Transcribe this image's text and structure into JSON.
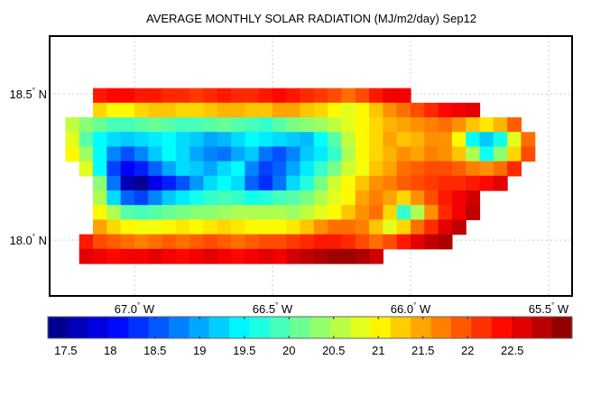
{
  "chart_data": {
    "type": "heatmap",
    "title": "AVERAGE MONTHLY SOLAR RADIATION (MJ/m2/day) Sep12",
    "colormap": "jet",
    "clim": [
      17.3,
      23.17
    ],
    "xlim": [
      -67.307,
      -65.415
    ],
    "ylim": [
      17.809,
      18.698
    ],
    "grid": true,
    "x_ticks": [
      {
        "value": -67.0,
        "label": "67.0",
        "suffix": "W"
      },
      {
        "value": -66.5,
        "label": "66.5",
        "suffix": "W"
      },
      {
        "value": -66.0,
        "label": "66.0",
        "suffix": "W"
      },
      {
        "value": -65.5,
        "label": "65.5",
        "suffix": "W"
      }
    ],
    "y_ticks": [
      {
        "value": 18.5,
        "label": "18.5",
        "suffix": "N"
      },
      {
        "value": 18.0,
        "label": "18.0",
        "suffix": "N"
      }
    ],
    "colorbar": {
      "position": "bottom",
      "ticks": [
        17.5,
        18,
        18.5,
        19,
        19.5,
        20,
        20.5,
        21,
        21.5,
        22,
        22.5
      ],
      "tick_labels": [
        "17.5",
        "18",
        "18.5",
        "19",
        "19.5",
        "20",
        "20.5",
        "21",
        "21.5",
        "22",
        "22.5"
      ]
    },
    "grid_data": {
      "lon_min": -67.25,
      "lat_max": 18.52,
      "step_deg": 0.05,
      "values": [
        [
          null,
          null,
          22.3,
          22.4,
          22.4,
          22.3,
          22.3,
          22.2,
          22.2,
          22.1,
          22.2,
          22.3,
          22.2,
          22.2,
          22.3,
          22.4,
          22.3,
          22.2,
          22.1,
          22.0,
          21.8,
          22.0,
          22.3,
          22.5,
          22.5,
          null,
          null,
          null,
          null,
          null,
          null,
          null,
          null,
          null
        ],
        [
          null,
          null,
          21.2,
          21.0,
          21.0,
          21.2,
          21.3,
          21.3,
          21.2,
          21.2,
          21.3,
          21.4,
          21.4,
          21.3,
          21.3,
          21.5,
          21.5,
          21.3,
          21.2,
          21.0,
          20.8,
          21.0,
          21.3,
          21.6,
          21.8,
          22.0,
          22.2,
          22.4,
          22.5,
          22.6,
          null,
          null,
          null,
          null
        ],
        [
          20.6,
          20.3,
          20.1,
          19.9,
          19.9,
          20.0,
          20.1,
          20.0,
          19.9,
          19.9,
          20.0,
          20.1,
          20.0,
          19.9,
          19.8,
          20.0,
          20.2,
          20.3,
          20.4,
          20.6,
          20.8,
          21.0,
          21.2,
          21.4,
          21.5,
          21.6,
          21.7,
          21.8,
          21.6,
          21.3,
          21.1,
          21.4,
          21.9,
          null
        ],
        [
          20.8,
          20.0,
          19.5,
          19.3,
          19.2,
          19.3,
          19.4,
          19.5,
          19.3,
          19.2,
          19.0,
          19.1,
          19.3,
          19.5,
          19.4,
          19.3,
          19.2,
          19.1,
          19.5,
          20.0,
          20.6,
          21.0,
          21.2,
          21.5,
          21.3,
          21.4,
          21.6,
          21.6,
          21.0,
          19.5,
          19.2,
          19.6,
          20.8,
          21.8
        ],
        [
          21.0,
          20.4,
          19.5,
          18.8,
          18.5,
          18.8,
          19.2,
          19.5,
          19.3,
          19.0,
          18.8,
          18.7,
          19.0,
          19.2,
          18.7,
          18.5,
          18.8,
          19.2,
          19.4,
          19.8,
          20.5,
          21.0,
          21.2,
          21.4,
          21.6,
          21.5,
          21.7,
          21.6,
          21.3,
          20.5,
          19.6,
          20.3,
          21.2,
          22.0
        ],
        [
          null,
          20.8,
          19.5,
          18.4,
          18.0,
          18.2,
          18.6,
          19.0,
          19.3,
          19.2,
          19.0,
          19.3,
          19.5,
          18.8,
          18.4,
          18.6,
          19.0,
          19.4,
          19.8,
          20.2,
          20.7,
          20.9,
          21.3,
          21.5,
          21.8,
          21.9,
          22.0,
          22.0,
          21.9,
          21.7,
          21.6,
          21.8,
          22.2,
          null
        ],
        [
          null,
          null,
          20.3,
          18.7,
          17.6,
          17.4,
          17.9,
          18.2,
          18.5,
          18.9,
          19.3,
          19.5,
          19.3,
          18.6,
          18.3,
          18.7,
          19.3,
          19.7,
          20.2,
          20.7,
          21.0,
          21.3,
          21.6,
          21.7,
          21.9,
          22.0,
          22.1,
          22.2,
          22.2,
          22.3,
          22.4,
          22.6,
          null,
          null
        ],
        [
          null,
          null,
          20.5,
          19.3,
          18.6,
          18.4,
          18.8,
          19.2,
          19.4,
          19.6,
          19.8,
          19.9,
          19.8,
          19.6,
          19.7,
          19.9,
          20.0,
          20.2,
          20.5,
          20.8,
          21.0,
          21.5,
          21.7,
          21.5,
          21.2,
          21.6,
          22.0,
          22.3,
          22.5,
          22.7,
          null,
          null,
          null,
          null
        ],
        [
          null,
          null,
          21.0,
          20.5,
          20.0,
          19.9,
          20.0,
          20.1,
          20.2,
          20.3,
          20.3,
          20.4,
          20.5,
          20.5,
          20.5,
          20.5,
          20.4,
          20.6,
          20.8,
          21.0,
          21.3,
          21.6,
          21.8,
          21.2,
          19.8,
          20.5,
          21.6,
          22.2,
          22.5,
          22.8,
          null,
          null,
          null,
          null
        ],
        [
          null,
          null,
          21.5,
          21.2,
          21.0,
          20.9,
          20.9,
          21.0,
          21.1,
          21.0,
          21.1,
          21.2,
          21.1,
          21.0,
          21.0,
          21.0,
          21.1,
          21.3,
          21.6,
          21.8,
          21.8,
          21.7,
          21.3,
          20.8,
          21.2,
          21.8,
          22.2,
          22.6,
          22.8,
          null,
          null,
          null,
          null,
          null
        ],
        [
          null,
          22.3,
          22.0,
          21.9,
          21.8,
          21.7,
          21.8,
          21.9,
          21.8,
          21.9,
          22.0,
          21.9,
          21.8,
          21.9,
          22.0,
          22.0,
          22.1,
          22.2,
          22.3,
          22.3,
          22.2,
          22.0,
          21.8,
          22.0,
          22.3,
          22.6,
          22.8,
          22.9,
          null,
          null,
          null,
          null,
          null,
          null
        ],
        [
          null,
          22.6,
          22.5,
          22.4,
          22.5,
          22.5,
          22.6,
          22.5,
          22.4,
          22.5,
          22.6,
          22.5,
          22.4,
          22.5,
          22.6,
          22.5,
          22.7,
          22.8,
          22.9,
          23.0,
          23.0,
          22.9,
          22.7,
          null,
          null,
          null,
          null,
          null,
          null,
          null,
          null,
          null,
          null,
          null
        ]
      ]
    }
  }
}
